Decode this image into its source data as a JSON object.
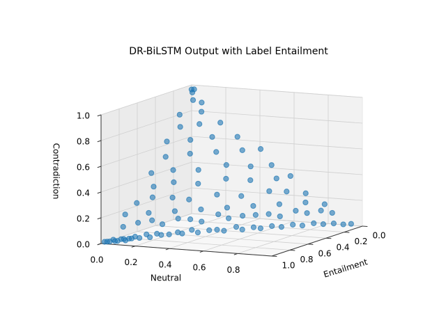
{
  "chart_data": {
    "type": "scatter3d",
    "title": "DR-BiLSTM Output with Label Entailment",
    "xlabel": "Neutral",
    "ylabel": "Entailment",
    "zlabel": "Contradiction",
    "color": "#1f77b4",
    "grid": true,
    "xlim": [
      0,
      1
    ],
    "ylim": [
      0,
      1
    ],
    "zlim": [
      0,
      1
    ],
    "xticks": [
      {
        "value": 0,
        "label": "0.0"
      },
      {
        "value": 0.2,
        "label": "0.2"
      },
      {
        "value": 0.4,
        "label": "0.4"
      },
      {
        "value": 0.6,
        "label": "0.6"
      },
      {
        "value": 0.8,
        "label": "0.8"
      }
    ],
    "yticks": [
      {
        "value": 0,
        "label": "0.0"
      },
      {
        "value": 0.2,
        "label": "0.2"
      },
      {
        "value": 0.4,
        "label": "0.4"
      },
      {
        "value": 0.6,
        "label": "0.6"
      },
      {
        "value": 0.8,
        "label": "0.8"
      },
      {
        "value": 1,
        "label": "1.0"
      }
    ],
    "zticks": [
      {
        "value": 0,
        "label": "0.0"
      },
      {
        "value": 0.2,
        "label": "0.2"
      },
      {
        "value": 0.4,
        "label": "0.4"
      },
      {
        "value": 0.6,
        "label": "0.6"
      },
      {
        "value": 0.8,
        "label": "0.8"
      },
      {
        "value": 1,
        "label": "1.0"
      }
    ],
    "x": [
      0.02,
      0.04,
      0.06,
      0.08,
      0.1,
      0.12,
      0.14,
      0.16,
      0.18,
      0.2,
      0.22,
      0.25,
      0.28,
      0.3,
      0.33,
      0.36,
      0.4,
      0.43,
      0.46,
      0.5,
      0.53,
      0.57,
      0.6,
      0.64,
      0.68,
      0.72,
      0.76,
      0.8,
      0.84,
      0.88,
      0.92,
      0.95,
      0.05,
      0.1,
      0.15,
      0.2,
      0.25,
      0.3,
      0.35,
      0.4,
      0.45,
      0.5,
      0.55,
      0.6,
      0.65,
      0.7,
      0.75,
      0.8,
      0.85,
      0.03,
      0.12,
      0.22,
      0.32,
      0.42,
      0.52,
      0.62,
      0.72,
      0.8,
      0.05,
      0.1,
      0.18,
      0.25,
      0.35,
      0.45,
      0.55,
      0.62,
      0.7,
      0.08,
      0.15,
      0.25,
      0.35,
      0.45,
      0.55,
      0.6,
      0.04,
      0.12,
      0.22,
      0.32,
      0.42,
      0.5,
      0.06,
      0.15,
      0.25,
      0.35,
      0.42,
      0.03,
      0.12,
      0.2,
      0.3,
      0.05,
      0.12,
      0.2,
      0.02,
      0.1,
      0.04,
      0.08,
      0.02,
      0.01,
      0.02,
      0.01,
      0.03,
      0.05,
      0.07,
      0.09,
      0.11
    ],
    "y": [
      0.97,
      0.94,
      0.93,
      0.9,
      0.88,
      0.85,
      0.84,
      0.8,
      0.8,
      0.76,
      0.75,
      0.72,
      0.68,
      0.67,
      0.62,
      0.61,
      0.56,
      0.53,
      0.51,
      0.45,
      0.44,
      0.39,
      0.37,
      0.32,
      0.29,
      0.24,
      0.21,
      0.16,
      0.13,
      0.09,
      0.06,
      0.03,
      0.85,
      0.78,
      0.72,
      0.7,
      0.62,
      0.58,
      0.55,
      0.46,
      0.44,
      0.38,
      0.33,
      0.28,
      0.25,
      0.17,
      0.14,
      0.08,
      0.05,
      0.79,
      0.7,
      0.6,
      0.5,
      0.4,
      0.3,
      0.2,
      0.1,
      0.04,
      0.7,
      0.62,
      0.55,
      0.5,
      0.38,
      0.3,
      0.18,
      0.12,
      0.06,
      0.57,
      0.48,
      0.4,
      0.28,
      0.2,
      0.1,
      0.04,
      0.52,
      0.43,
      0.34,
      0.22,
      0.14,
      0.06,
      0.4,
      0.3,
      0.2,
      0.1,
      0.03,
      0.33,
      0.24,
      0.15,
      0.06,
      0.22,
      0.14,
      0.06,
      0.17,
      0.08,
      0.06,
      0.04,
      0.03,
      0.02,
      0.01,
      0.98,
      0.96,
      0.94,
      0.91,
      0.9,
      0.87
    ],
    "z": [
      0.01,
      0.02,
      0.01,
      0.02,
      0.02,
      0.03,
      0.02,
      0.04,
      0.02,
      0.04,
      0.03,
      0.03,
      0.04,
      0.03,
      0.05,
      0.03,
      0.04,
      0.04,
      0.03,
      0.05,
      0.03,
      0.04,
      0.03,
      0.04,
      0.03,
      0.04,
      0.03,
      0.04,
      0.03,
      0.03,
      0.02,
      0.02,
      0.1,
      0.12,
      0.13,
      0.1,
      0.13,
      0.12,
      0.1,
      0.14,
      0.11,
      0.12,
      0.12,
      0.12,
      0.1,
      0.13,
      0.11,
      0.12,
      0.1,
      0.18,
      0.18,
      0.18,
      0.18,
      0.18,
      0.18,
      0.18,
      0.18,
      0.16,
      0.25,
      0.28,
      0.27,
      0.25,
      0.27,
      0.25,
      0.27,
      0.26,
      0.24,
      0.35,
      0.37,
      0.35,
      0.37,
      0.35,
      0.35,
      0.36,
      0.44,
      0.45,
      0.44,
      0.46,
      0.44,
      0.44,
      0.54,
      0.55,
      0.55,
      0.55,
      0.55,
      0.64,
      0.64,
      0.65,
      0.64,
      0.73,
      0.74,
      0.74,
      0.81,
      0.82,
      0.9,
      0.88,
      0.95,
      0.97,
      0.97,
      0.01,
      0.01,
      0.01,
      0.02,
      0.01,
      0.02
    ]
  }
}
